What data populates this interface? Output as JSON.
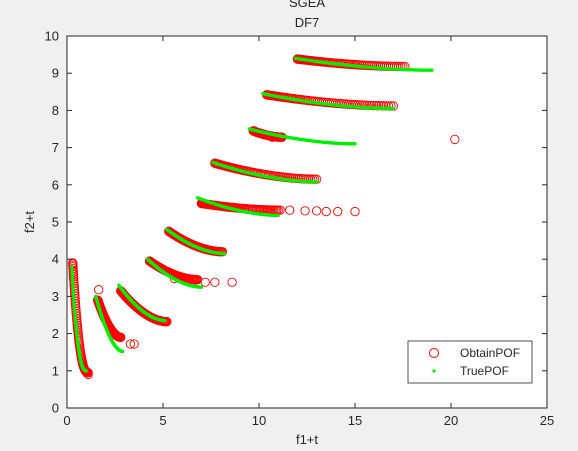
{
  "chart_data": {
    "type": "scatter",
    "title": "SGEA",
    "subtitle": "DF7",
    "xlabel": "f1+t",
    "ylabel": "f2+t",
    "xlim": [
      0,
      25
    ],
    "ylim": [
      0,
      10
    ],
    "xticks": [
      0,
      5,
      10,
      15,
      20,
      25
    ],
    "yticks": [
      0,
      1,
      2,
      3,
      4,
      5,
      6,
      7,
      8,
      9,
      10
    ],
    "grid": false,
    "legend_position": "bottom-right",
    "series": [
      {
        "name": "ObtainPOF",
        "marker": "circle-open",
        "color": "#ff0000",
        "fronts": [
          {
            "x_start": 0.3,
            "x_end": 1.1,
            "y_start": 3.9,
            "y_end": 0.95
          },
          {
            "x_start": 1.6,
            "x_end": 2.8,
            "y_start": 2.9,
            "y_end": 1.9
          },
          {
            "x_start": 2.8,
            "x_end": 5.2,
            "y_start": 3.15,
            "y_end": 2.32
          },
          {
            "x_start": 4.3,
            "x_end": 6.8,
            "y_start": 3.95,
            "y_end": 3.45
          },
          {
            "x_start": 5.3,
            "x_end": 8.1,
            "y_start": 4.75,
            "y_end": 4.2
          },
          {
            "x_start": 7.0,
            "x_end": 11.0,
            "y_start": 5.5,
            "y_end": 5.32
          },
          {
            "x_start": 7.7,
            "x_end": 13.0,
            "y_start": 6.58,
            "y_end": 6.15
          },
          {
            "x_start": 9.7,
            "x_end": 11.2,
            "y_start": 7.45,
            "y_end": 7.28
          },
          {
            "x_start": 10.4,
            "x_end": 17.0,
            "y_start": 8.42,
            "y_end": 8.12
          },
          {
            "x_start": 12.0,
            "x_end": 17.6,
            "y_start": 9.38,
            "y_end": 9.18
          }
        ],
        "outliers": [
          {
            "x": 1.1,
            "y": 0.9
          },
          {
            "x": 1.65,
            "y": 3.18
          },
          {
            "x": 1.65,
            "y": 2.82
          },
          {
            "x": 3.3,
            "y": 1.72
          },
          {
            "x": 3.5,
            "y": 1.72
          },
          {
            "x": 5.6,
            "y": 3.48
          },
          {
            "x": 6.6,
            "y": 3.42
          },
          {
            "x": 7.2,
            "y": 3.38
          },
          {
            "x": 7.7,
            "y": 3.38
          },
          {
            "x": 8.6,
            "y": 3.38
          },
          {
            "x": 10.7,
            "y": 7.28
          },
          {
            "x": 11.1,
            "y": 5.32
          },
          {
            "x": 11.6,
            "y": 5.32
          },
          {
            "x": 12.4,
            "y": 5.3
          },
          {
            "x": 13.0,
            "y": 5.3
          },
          {
            "x": 13.5,
            "y": 5.28
          },
          {
            "x": 14.1,
            "y": 5.28
          },
          {
            "x": 15.0,
            "y": 5.28
          },
          {
            "x": 20.2,
            "y": 7.22
          }
        ]
      },
      {
        "name": "TruePOF",
        "marker": "dot",
        "color": "#00ee00",
        "fronts": [
          {
            "x_start": 0.25,
            "x_end": 1.0,
            "y_start": 3.8,
            "y_end": 1.0
          },
          {
            "x_start": 1.5,
            "x_end": 2.9,
            "y_start": 3.0,
            "y_end": 1.52
          },
          {
            "x_start": 2.7,
            "x_end": 5.1,
            "y_start": 3.3,
            "y_end": 2.35
          },
          {
            "x_start": 4.2,
            "x_end": 7.0,
            "y_start": 4.0,
            "y_end": 3.25
          },
          {
            "x_start": 5.2,
            "x_end": 8.2,
            "y_start": 4.8,
            "y_end": 4.15
          },
          {
            "x_start": 6.8,
            "x_end": 11.0,
            "y_start": 5.65,
            "y_end": 5.18
          },
          {
            "x_start": 7.6,
            "x_end": 13.0,
            "y_start": 6.6,
            "y_end": 6.08
          },
          {
            "x_start": 9.5,
            "x_end": 15.0,
            "y_start": 7.5,
            "y_end": 7.1
          },
          {
            "x_start": 10.2,
            "x_end": 17.0,
            "y_start": 8.45,
            "y_end": 8.05
          },
          {
            "x_start": 11.9,
            "x_end": 19.0,
            "y_start": 9.4,
            "y_end": 9.08
          }
        ]
      }
    ]
  }
}
